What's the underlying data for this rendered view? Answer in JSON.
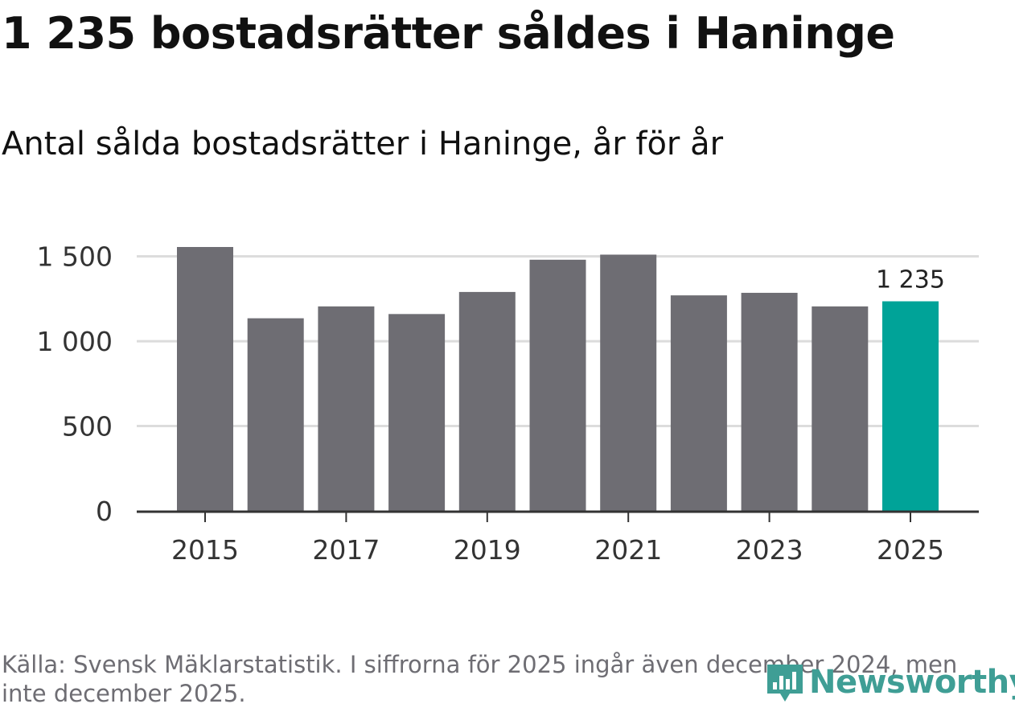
{
  "title": "1 235 bostadsrätter såldes i Haninge",
  "subtitle": "Antal sålda bostadsrätter i Haninge, år för år",
  "source": "Källa: Svensk Mäklarstatistik. I siffrorna för 2025 ingår även december 2024, men inte december 2025.",
  "logo": {
    "text": "Newsworthy",
    "icon": "newsworthy-logo-icon"
  },
  "colors": {
    "bar": "#6e6d73",
    "highlight": "#00a398",
    "grid": "#dcdcdc",
    "axis": "#333333",
    "text": "#333333"
  },
  "chart_data": {
    "type": "bar",
    "categories": [
      "2015",
      "2016",
      "2017",
      "2018",
      "2019",
      "2020",
      "2021",
      "2022",
      "2023",
      "2024",
      "2025"
    ],
    "values": [
      1555,
      1135,
      1205,
      1160,
      1290,
      1480,
      1510,
      1270,
      1285,
      1205,
      1235
    ],
    "highlight_index": 10,
    "data_labels": [
      {
        "index": 10,
        "label": "1 235"
      }
    ],
    "xticks": [
      "2015",
      "2017",
      "2019",
      "2021",
      "2023",
      "2025"
    ],
    "yticks": [
      0,
      500,
      1000,
      1500
    ],
    "ytick_labels": [
      "0",
      "500",
      "1 000",
      "1 500"
    ],
    "ylim": [
      0,
      1555
    ],
    "xlabel": "",
    "ylabel": "",
    "grid": true,
    "legend": false
  }
}
